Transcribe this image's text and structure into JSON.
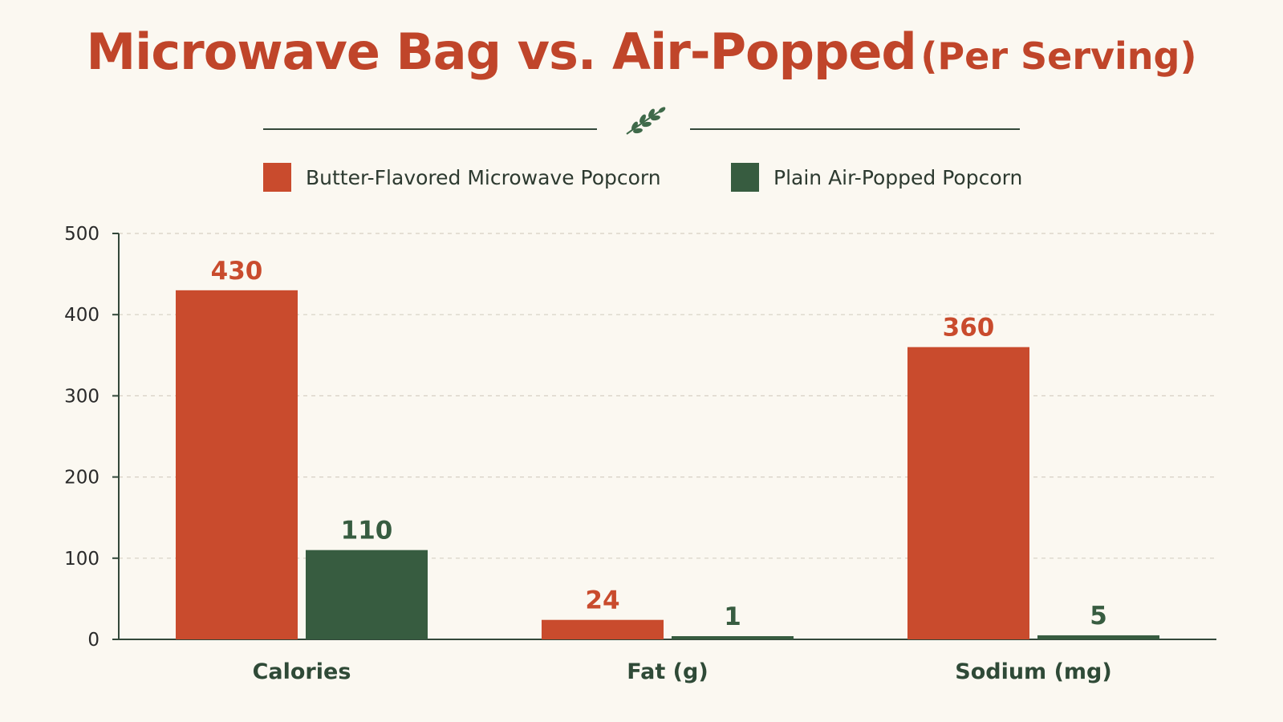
{
  "title": {
    "main": "Microwave Bag vs. Air-Popped",
    "sub": "(Per Serving)"
  },
  "icons": {
    "divider": "leaf-sprig-icon"
  },
  "colors": {
    "microwave": "#c94b2d",
    "air_popped": "#375c40",
    "title": "#c0452a",
    "background": "#fbf8f1"
  },
  "chart_data": {
    "type": "bar",
    "title": "Microwave Bag vs. Air-Popped (Per Serving)",
    "categories": [
      "Calories",
      "Fat (g)",
      "Sodium (mg)"
    ],
    "series": [
      {
        "name": "Butter-Flavored Microwave Popcorn",
        "values": [
          430,
          24,
          360
        ],
        "value_labels": [
          "430",
          "24",
          "360"
        ]
      },
      {
        "name": "Plain Air-Popped Popcorn",
        "values": [
          110,
          1,
          5
        ],
        "value_labels": [
          "110",
          "1",
          "5"
        ]
      }
    ],
    "ylim": [
      0,
      500
    ],
    "yticks": [
      0,
      100,
      200,
      300,
      400,
      500
    ],
    "ytick_labels": [
      "0",
      "100",
      "200",
      "300",
      "400",
      "500"
    ],
    "grid": "horizontal dashed",
    "legend_position": "top"
  }
}
